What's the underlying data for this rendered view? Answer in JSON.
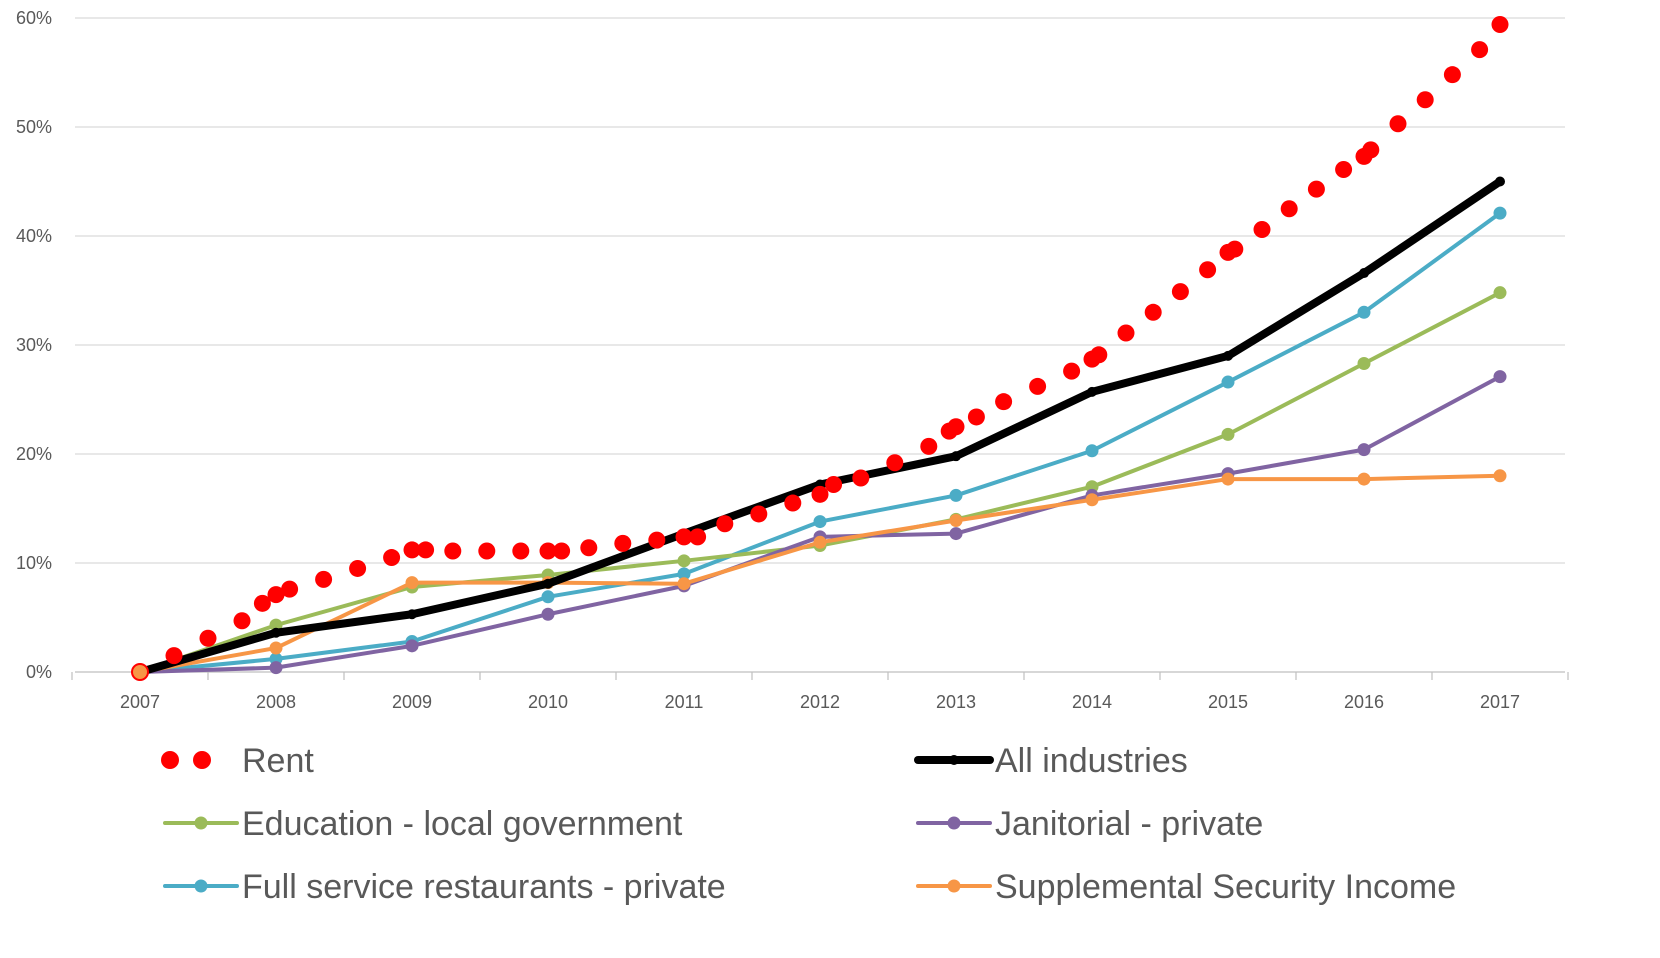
{
  "chart_data": {
    "type": "line",
    "title": "",
    "xlabel": "",
    "ylabel": "",
    "categories": [
      "2007",
      "2008",
      "2009",
      "2010",
      "2011",
      "2012",
      "2013",
      "2014",
      "2015",
      "2016",
      "2017"
    ],
    "ylim": [
      0,
      60
    ],
    "y_ticks": [
      0,
      10,
      20,
      30,
      40,
      50,
      60
    ],
    "y_tick_labels": [
      "0%",
      "10%",
      "20%",
      "30%",
      "40%",
      "50%",
      "60%"
    ],
    "grid": true,
    "legend_position": "bottom",
    "series": [
      {
        "name": "Rent",
        "style": "dotted",
        "color": "#ff0000",
        "x": [
          2007,
          2007.25,
          2007.5,
          2007.75,
          2007.9,
          2008,
          2008.1,
          2008.35,
          2008.6,
          2008.85,
          2009,
          2009.1,
          2009.3,
          2009.55,
          2009.8,
          2010,
          2010.1,
          2010.3,
          2010.55,
          2010.8,
          2011,
          2011.1,
          2011.3,
          2011.55,
          2011.8,
          2012,
          2012.1,
          2012.3,
          2012.55,
          2012.8,
          2012.95,
          2013,
          2013.15,
          2013.35,
          2013.6,
          2013.85,
          2014,
          2014.05,
          2014.25,
          2014.45,
          2014.65,
          2014.85,
          2015,
          2015.05,
          2015.25,
          2015.45,
          2015.65,
          2015.85,
          2016,
          2016.05,
          2016.25,
          2016.45,
          2016.65,
          2016.85,
          2017
        ],
        "values": [
          0,
          1.5,
          3.1,
          4.7,
          6.3,
          7.1,
          7.6,
          8.5,
          9.5,
          10.5,
          11.2,
          11.2,
          11.1,
          11.1,
          11.1,
          11.1,
          11.1,
          11.4,
          11.8,
          12.1,
          12.4,
          12.4,
          13.6,
          14.5,
          15.5,
          16.3,
          17.2,
          17.8,
          19.2,
          20.7,
          22.1,
          22.5,
          23.4,
          24.8,
          26.2,
          27.6,
          28.7,
          29.1,
          31.1,
          33,
          34.9,
          36.9,
          38.5,
          38.8,
          40.6,
          42.5,
          44.3,
          46.1,
          47.3,
          47.9,
          50.3,
          52.5,
          54.8,
          57.1,
          59.4
        ]
      },
      {
        "name": "All industries",
        "style": "line",
        "color": "#000000",
        "x": [
          2007,
          2008,
          2009,
          2010,
          2011,
          2012,
          2013,
          2014,
          2015,
          2016,
          2017
        ],
        "values": [
          0,
          3.6,
          5.3,
          8.1,
          12.7,
          17.2,
          19.8,
          25.7,
          29.0,
          36.6,
          45.0
        ]
      },
      {
        "name": "Education - local government",
        "style": "line-marker",
        "color": "#9bbb59",
        "x": [
          2007,
          2008,
          2009,
          2010,
          2011,
          2012,
          2013,
          2014,
          2015,
          2016,
          2017
        ],
        "values": [
          0,
          4.3,
          7.8,
          8.9,
          10.2,
          11.6,
          14.0,
          17.0,
          21.8,
          28.3,
          34.8
        ]
      },
      {
        "name": "Janitorial - private",
        "style": "line-marker",
        "color": "#8064a2",
        "x": [
          2007,
          2008,
          2009,
          2010,
          2011,
          2012,
          2013,
          2014,
          2015,
          2016,
          2017
        ],
        "values": [
          0,
          0.4,
          2.4,
          5.3,
          7.9,
          12.4,
          12.7,
          16.2,
          18.2,
          20.4,
          27.1
        ]
      },
      {
        "name": "Full service restaurants - private",
        "style": "line",
        "color": "#4bacc6",
        "x": [
          2007,
          2008,
          2009,
          2010,
          2011,
          2012,
          2013,
          2014,
          2015,
          2016,
          2017
        ],
        "values": [
          0,
          1.2,
          2.8,
          6.9,
          9.0,
          13.8,
          16.2,
          20.3,
          26.6,
          33.0,
          42.1
        ]
      },
      {
        "name": "Supplemental Security Income",
        "style": "line-marker",
        "color": "#f79646",
        "x": [
          2007,
          2008,
          2009,
          2010,
          2011,
          2012,
          2013,
          2014,
          2015,
          2016,
          2017
        ],
        "values": [
          0,
          2.2,
          8.2,
          8.2,
          8.1,
          11.9,
          13.9,
          15.8,
          17.7,
          17.7,
          18.0
        ]
      }
    ]
  }
}
